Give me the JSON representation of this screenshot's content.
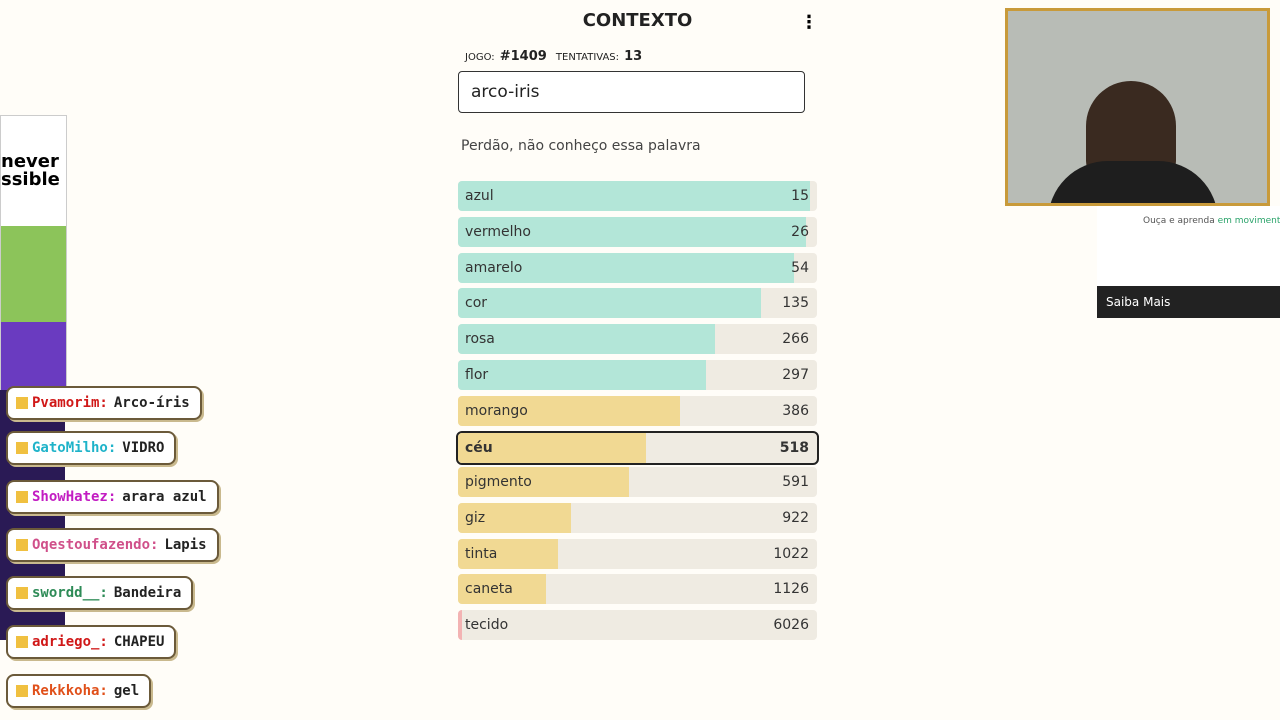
{
  "header": {
    "title": "CONTEXTO",
    "game_label": "JOGO:",
    "game_number": "#1409",
    "attempts_label": "TENTATIVAS:",
    "attempts": "13"
  },
  "input": {
    "value": "arco-iris"
  },
  "message": "Perdão, não conheço essa palavra",
  "guesses": [
    {
      "word": "azul",
      "rank": 15
    },
    {
      "word": "vermelho",
      "rank": 26
    },
    {
      "word": "amarelo",
      "rank": 54
    },
    {
      "word": "cor",
      "rank": 135
    },
    {
      "word": "rosa",
      "rank": 266
    },
    {
      "word": "flor",
      "rank": 297
    },
    {
      "word": "morango",
      "rank": 386
    },
    {
      "word": "céu",
      "rank": 518,
      "highlight": true
    },
    {
      "word": "pigmento",
      "rank": 591
    },
    {
      "word": "giz",
      "rank": 922
    },
    {
      "word": "tinta",
      "rank": 1022
    },
    {
      "word": "caneta",
      "rank": 1126
    },
    {
      "word": "tecido",
      "rank": 6026
    }
  ],
  "chat": [
    {
      "user": "Pvamorim:",
      "text": "Arco-íris",
      "color": "#d01818"
    },
    {
      "user": "GatoMilho:",
      "text": "VIDRO",
      "color": "#1fb3c9"
    },
    {
      "user": "ShowHatez:",
      "text": "arara azul",
      "color": "#c21cc2"
    },
    {
      "user": "Oqestoufazendo:",
      "text": "Lapis",
      "color": "#d0508a"
    },
    {
      "user": "swordd__:",
      "text": "Bandeira",
      "color": "#2e8b57"
    },
    {
      "user": "adriego_:",
      "text": "CHAPEU",
      "color": "#d01818"
    },
    {
      "user": "Rekkkoha:",
      "text": "gel",
      "color": "#e0501a"
    }
  ],
  "left_ad": {
    "line1": "never",
    "line2": "ssible"
  },
  "right_ad": {
    "text": "Ouça e aprenda",
    "highlight": "em movimento",
    "button": "Saiba Mais"
  }
}
